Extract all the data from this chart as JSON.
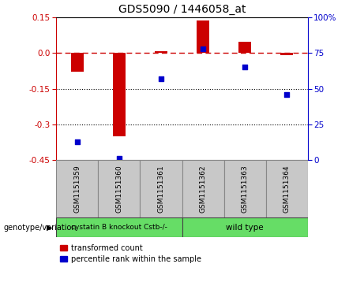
{
  "title": "GDS5090 / 1446058_at",
  "samples": [
    "GSM1151359",
    "GSM1151360",
    "GSM1151361",
    "GSM1151362",
    "GSM1151363",
    "GSM1151364"
  ],
  "transformed_count": [
    -0.08,
    -0.35,
    0.008,
    0.135,
    0.048,
    -0.008
  ],
  "percentile_rank": [
    13,
    1,
    57,
    78,
    65,
    46
  ],
  "group1_label": "cystatin B knockout Cstb-/-",
  "group2_label": "wild type",
  "group_color": "#66DD66",
  "bar_color": "#CC0000",
  "dot_color": "#0000CC",
  "ylim_left": [
    -0.45,
    0.15
  ],
  "ylim_right": [
    0,
    100
  ],
  "yticks_left": [
    -0.45,
    -0.3,
    -0.15,
    0.0,
    0.15
  ],
  "yticks_right": [
    0,
    25,
    50,
    75,
    100
  ],
  "hline_y": 0.0,
  "dotted_lines": [
    -0.15,
    -0.3
  ],
  "xlabel_area_color": "#C8C8C8",
  "legend_red_label": "transformed count",
  "legend_blue_label": "percentile rank within the sample",
  "genotype_label": "genotype/variation"
}
